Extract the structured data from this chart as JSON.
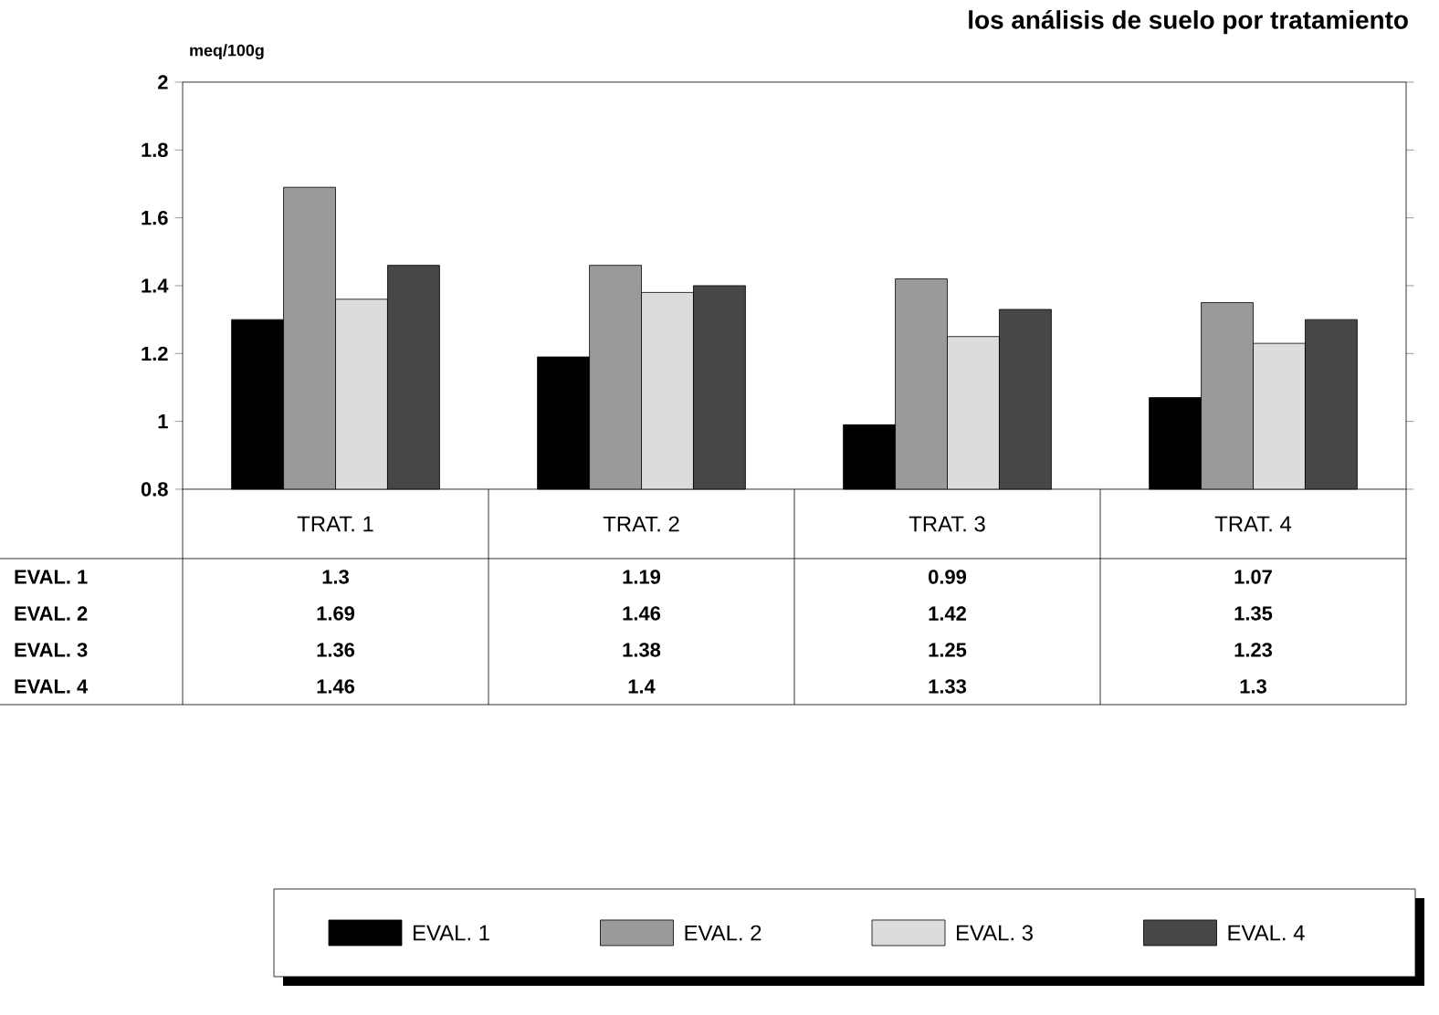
{
  "chart_data": {
    "type": "bar",
    "title": "los análisis de suelo por tratamiento",
    "ylabel": "meq/100g",
    "categories": [
      "TRAT. 1",
      "TRAT. 2",
      "TRAT. 3",
      "TRAT. 4"
    ],
    "series": [
      {
        "name": "EVAL. 1",
        "color": "#000000",
        "values": [
          1.3,
          1.19,
          0.99,
          1.07
        ]
      },
      {
        "name": "EVAL. 2",
        "color": "#9a9a9a",
        "values": [
          1.69,
          1.46,
          1.42,
          1.35
        ]
      },
      {
        "name": "EVAL. 3",
        "color": "#dcdcdc",
        "values": [
          1.36,
          1.38,
          1.25,
          1.23
        ]
      },
      {
        "name": "EVAL. 4",
        "color": "#474747",
        "values": [
          1.46,
          1.4,
          1.33,
          1.3
        ]
      }
    ],
    "ylim": [
      0.8,
      2
    ],
    "yticks": [
      0.8,
      1,
      1.2,
      1.4,
      1.6,
      1.8,
      2
    ],
    "data_labels": true,
    "legend": "bottom",
    "grid": false
  }
}
